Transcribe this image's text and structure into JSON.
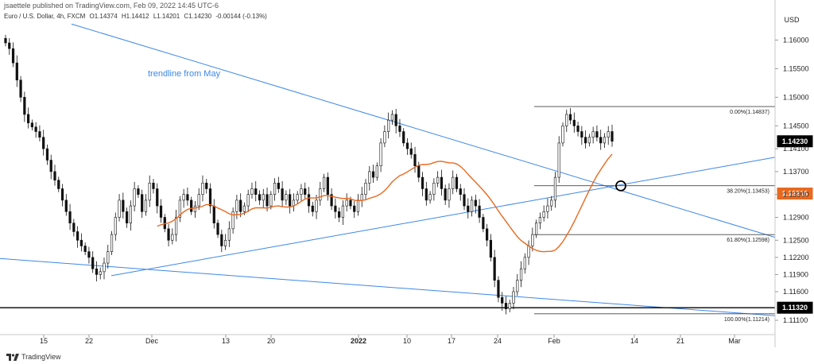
{
  "publisher_line": "jsaettele published on TradingView.com, Feb 09, 2022 14:45 UTC-6",
  "symbol_legend": {
    "symbol": "Euro / U.S. Dollar, 4h, FXCM",
    "open": "O1.14374",
    "high": "H1.14412",
    "low": "L1.14201",
    "close": "C1.14230",
    "change": "-0.00144 (-0.13%)"
  },
  "currency_label": "USD",
  "annotation_text": "trendline from May",
  "brand_text": "TradingView",
  "colors": {
    "candle": "#111111",
    "trendline": "#3d87e8",
    "moving_average": "#e8691f",
    "horizontal_level": "#000000",
    "fib_line": "#444444",
    "current_price_tag": "#000000",
    "ma_price_tag": "#e8691f"
  },
  "chart_data": {
    "type": "candlestick",
    "timeframe": "4h",
    "x_ticks": [
      "15",
      "22",
      "Dec",
      "13",
      "20",
      "2022",
      "10",
      "17",
      "24",
      "Feb",
      "14",
      "21",
      "Mar"
    ],
    "y_ticks": [
      "1.16000",
      "1.15500",
      "1.15000",
      "1.14500",
      "1.14100",
      "1.13700",
      "1.13300",
      "1.12900",
      "1.12500",
      "1.12200",
      "1.11900",
      "1.11600",
      "1.11100"
    ],
    "ylim": [
      1.1085,
      1.1645
    ],
    "grid": false,
    "last_price": "1.14230",
    "moving_average_last": "1.13316",
    "horizontal_level": "1.11320",
    "fibonacci": [
      {
        "label": "0.00%(1.14837)",
        "price": 1.14837
      },
      {
        "label": "38.20%(1.13453)",
        "price": 1.13453
      },
      {
        "label": "61.80%(1.12598)",
        "price": 1.12598
      },
      {
        "label": "100.00%(1.11214)",
        "price": 1.11214
      }
    ],
    "closes": [
      1.1595,
      1.1585,
      1.156,
      1.153,
      1.15,
      1.147,
      1.1455,
      1.1448,
      1.144,
      1.143,
      1.141,
      1.139,
      1.137,
      1.1355,
      1.134,
      1.132,
      1.13,
      1.128,
      1.1265,
      1.125,
      1.124,
      1.123,
      1.122,
      1.12,
      1.119,
      1.1195,
      1.121,
      1.123,
      1.126,
      1.129,
      1.132,
      1.13,
      1.128,
      1.131,
      1.134,
      1.133,
      1.13,
      1.132,
      1.135,
      1.134,
      1.131,
      1.129,
      1.127,
      1.125,
      1.126,
      1.129,
      1.132,
      1.133,
      1.132,
      1.13,
      1.131,
      1.133,
      1.135,
      1.134,
      1.131,
      1.128,
      1.126,
      1.124,
      1.125,
      1.127,
      1.13,
      1.132,
      1.13,
      1.131,
      1.133,
      1.134,
      1.133,
      1.132,
      1.133,
      1.131,
      1.133,
      1.135,
      1.134,
      1.132,
      1.133,
      1.131,
      1.132,
      1.133,
      1.134,
      1.133,
      1.131,
      1.13,
      1.132,
      1.134,
      1.136,
      1.133,
      1.131,
      1.13,
      1.129,
      1.131,
      1.132,
      1.131,
      1.13,
      1.132,
      1.133,
      1.135,
      1.137,
      1.136,
      1.138,
      1.142,
      1.144,
      1.146,
      1.147,
      1.145,
      1.144,
      1.142,
      1.141,
      1.14,
      1.138,
      1.136,
      1.134,
      1.132,
      1.133,
      1.135,
      1.136,
      1.134,
      1.132,
      1.134,
      1.136,
      1.134,
      1.133,
      1.131,
      1.13,
      1.132,
      1.131,
      1.129,
      1.127,
      1.125,
      1.122,
      1.118,
      1.115,
      1.114,
      1.113,
      1.114,
      1.116,
      1.118,
      1.12,
      1.122,
      1.124,
      1.126,
      1.128,
      1.129,
      1.13,
      1.131,
      1.132,
      1.136,
      1.142,
      1.145,
      1.147,
      1.146,
      1.145,
      1.144,
      1.143,
      1.142,
      1.143,
      1.144,
      1.143,
      1.142,
      1.143,
      1.144,
      1.1423
    ]
  }
}
